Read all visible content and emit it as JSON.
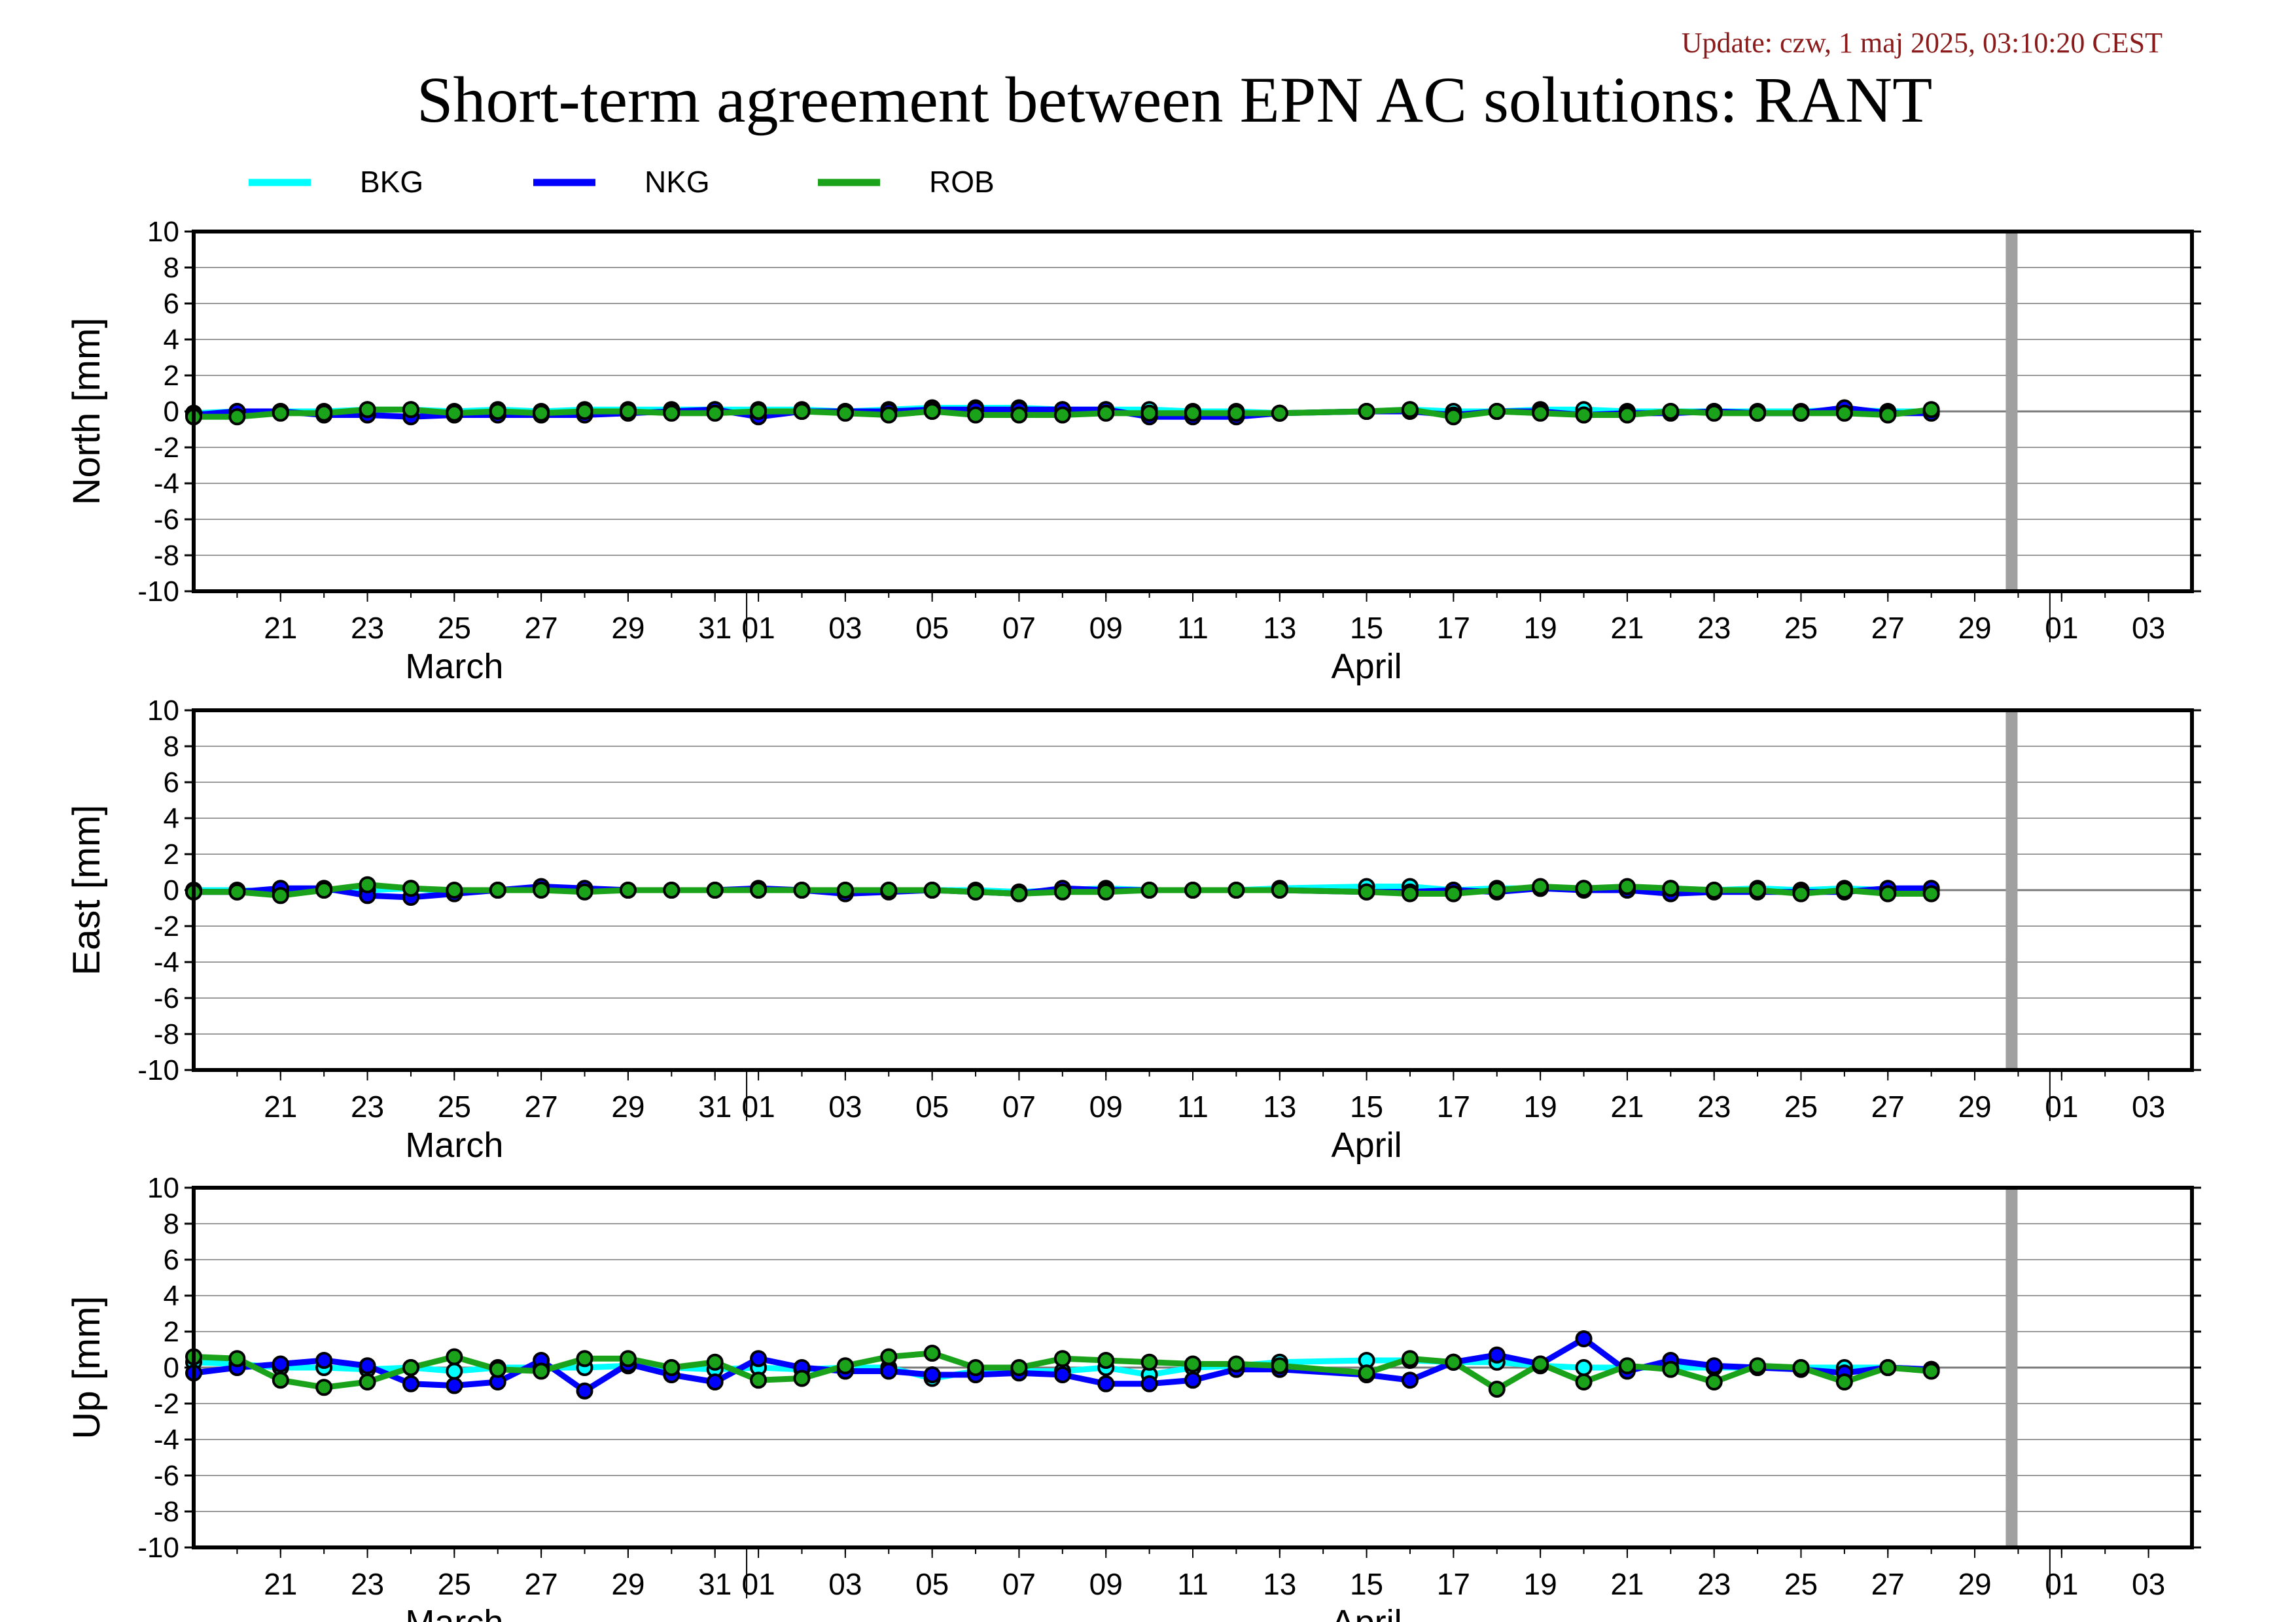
{
  "update_text": "Update: czw, 1 maj 2025, 03:10:20 CEST",
  "title": "Short-term agreement between EPN AC solutions: RANT",
  "colors": {
    "BKG": "#00ffff",
    "NKG": "#0000ff",
    "ROB": "#1aa31a",
    "update": "#8b1a1a",
    "today_bar": "#a0a0a0"
  },
  "chart_data": {
    "type": "line",
    "x_start": "2025-03-19",
    "x_end": "2025-05-04",
    "today_marker": "2025-04-30",
    "legend": [
      "BKG",
      "NKG",
      "ROB"
    ],
    "legend_placement": "top-left",
    "grid": true,
    "ylim": [
      -10,
      10
    ],
    "yticks": [
      10,
      8,
      6,
      4,
      2,
      0,
      -2,
      -4,
      -6,
      -8,
      -10
    ],
    "xtick_labels": [
      {
        "date": "2025-03-21",
        "label": "21"
      },
      {
        "date": "2025-03-23",
        "label": "23"
      },
      {
        "date": "2025-03-25",
        "label": "25"
      },
      {
        "date": "2025-03-27",
        "label": "27"
      },
      {
        "date": "2025-03-29",
        "label": "29"
      },
      {
        "date": "2025-03-31",
        "label": "31"
      },
      {
        "date": "2025-04-01",
        "label": "01"
      },
      {
        "date": "2025-04-03",
        "label": "03"
      },
      {
        "date": "2025-04-05",
        "label": "05"
      },
      {
        "date": "2025-04-07",
        "label": "07"
      },
      {
        "date": "2025-04-09",
        "label": "09"
      },
      {
        "date": "2025-04-11",
        "label": "11"
      },
      {
        "date": "2025-04-13",
        "label": "13"
      },
      {
        "date": "2025-04-15",
        "label": "15"
      },
      {
        "date": "2025-04-17",
        "label": "17"
      },
      {
        "date": "2025-04-19",
        "label": "19"
      },
      {
        "date": "2025-04-21",
        "label": "21"
      },
      {
        "date": "2025-04-23",
        "label": "23"
      },
      {
        "date": "2025-04-25",
        "label": "25"
      },
      {
        "date": "2025-04-27",
        "label": "27"
      },
      {
        "date": "2025-04-29",
        "label": "29"
      },
      {
        "date": "2025-05-01",
        "label": "01"
      },
      {
        "date": "2025-05-03",
        "label": "03"
      }
    ],
    "month_ticks": [
      "2025-04-01",
      "2025-05-01"
    ],
    "month_labels": [
      {
        "date": "2025-03-25",
        "label": "March"
      },
      {
        "date": "2025-04-15",
        "label": "April"
      }
    ],
    "x": [
      "2025-03-19",
      "2025-03-20",
      "2025-03-21",
      "2025-03-22",
      "2025-03-23",
      "2025-03-24",
      "2025-03-25",
      "2025-03-26",
      "2025-03-27",
      "2025-03-28",
      "2025-03-29",
      "2025-03-30",
      "2025-03-31",
      "2025-04-01",
      "2025-04-02",
      "2025-04-03",
      "2025-04-04",
      "2025-04-05",
      "2025-04-06",
      "2025-04-07",
      "2025-04-08",
      "2025-04-09",
      "2025-04-10",
      "2025-04-11",
      "2025-04-12",
      "2025-04-13",
      "2025-04-15",
      "2025-04-16",
      "2025-04-17",
      "2025-04-18",
      "2025-04-19",
      "2025-04-20",
      "2025-04-21",
      "2025-04-22",
      "2025-04-23",
      "2025-04-24",
      "2025-04-25",
      "2025-04-26",
      "2025-04-27",
      "2025-04-28"
    ],
    "panels": [
      {
        "ylabel": "North [mm]",
        "series": [
          {
            "name": "BKG",
            "values": [
              -0.1,
              0.0,
              0.0,
              0.0,
              0.1,
              0.1,
              0.0,
              0.1,
              0.0,
              0.1,
              0.1,
              0.1,
              0.1,
              0.1,
              0.1,
              0.0,
              0.1,
              0.2,
              0.2,
              0.2,
              0.1,
              0.1,
              0.1,
              0.0,
              0.0,
              -0.1,
              0.0,
              0.1,
              0.0,
              0.0,
              0.1,
              0.1,
              0.0,
              0.0,
              0.0,
              0.0,
              0.0,
              0.1,
              0.0,
              0.0
            ]
          },
          {
            "name": "NKG",
            "values": [
              -0.2,
              0.0,
              0.0,
              -0.2,
              -0.2,
              -0.3,
              -0.2,
              -0.2,
              -0.2,
              -0.2,
              -0.1,
              0.0,
              0.1,
              -0.3,
              0.0,
              0.0,
              0.0,
              0.1,
              0.1,
              0.1,
              0.1,
              0.1,
              -0.3,
              -0.3,
              -0.3,
              -0.1,
              0.0,
              0.0,
              -0.2,
              0.0,
              0.0,
              -0.2,
              -0.1,
              -0.1,
              0.0,
              -0.1,
              -0.1,
              0.2,
              -0.1,
              -0.1
            ]
          },
          {
            "name": "ROB",
            "values": [
              -0.3,
              -0.3,
              -0.1,
              -0.1,
              0.1,
              0.1,
              -0.1,
              0.0,
              -0.1,
              0.0,
              0.0,
              -0.1,
              -0.1,
              0.0,
              0.0,
              -0.1,
              -0.2,
              0.0,
              -0.2,
              -0.2,
              -0.2,
              -0.1,
              -0.1,
              -0.1,
              -0.1,
              -0.1,
              0.0,
              0.1,
              -0.3,
              0.0,
              -0.1,
              -0.2,
              -0.2,
              0.0,
              -0.1,
              -0.1,
              -0.1,
              -0.1,
              -0.2,
              0.1
            ]
          }
        ]
      },
      {
        "ylabel": "East [mm]",
        "series": [
          {
            "name": "BKG",
            "values": [
              0.0,
              0.0,
              -0.1,
              0.0,
              0.0,
              0.1,
              -0.1,
              0.0,
              0.1,
              0.0,
              0.0,
              0.0,
              0.0,
              0.0,
              0.0,
              0.0,
              0.0,
              0.0,
              0.0,
              -0.1,
              0.0,
              0.1,
              0.0,
              0.0,
              0.0,
              0.1,
              0.2,
              0.2,
              0.0,
              0.1,
              0.1,
              0.1,
              0.1,
              0.1,
              0.0,
              0.1,
              0.0,
              0.1,
              0.0,
              0.0
            ]
          },
          {
            "name": "NKG",
            "values": [
              -0.1,
              -0.1,
              0.1,
              0.1,
              -0.3,
              -0.4,
              -0.2,
              0.0,
              0.2,
              0.1,
              0.0,
              0.0,
              0.0,
              0.1,
              0.0,
              -0.2,
              -0.1,
              0.0,
              -0.1,
              -0.2,
              0.1,
              0.0,
              0.0,
              0.0,
              0.0,
              0.0,
              -0.1,
              -0.1,
              0.0,
              -0.1,
              0.1,
              0.0,
              0.0,
              -0.2,
              -0.1,
              -0.1,
              -0.1,
              -0.1,
              0.1,
              0.1
            ]
          },
          {
            "name": "ROB",
            "values": [
              -0.1,
              -0.1,
              -0.3,
              0.0,
              0.3,
              0.1,
              0.0,
              0.0,
              0.0,
              -0.1,
              0.0,
              0.0,
              0.0,
              0.0,
              0.0,
              0.0,
              0.0,
              0.0,
              -0.1,
              -0.2,
              -0.1,
              -0.1,
              0.0,
              0.0,
              0.0,
              0.0,
              -0.1,
              -0.2,
              -0.2,
              0.0,
              0.2,
              0.1,
              0.2,
              0.1,
              0.0,
              0.0,
              -0.2,
              0.0,
              -0.2,
              -0.2
            ]
          }
        ]
      },
      {
        "ylabel": "Up [mm]",
        "series": [
          {
            "name": "BKG",
            "values": [
              0.3,
              0.2,
              0.0,
              0.0,
              -0.1,
              0.0,
              -0.2,
              0.0,
              0.0,
              0.0,
              0.1,
              0.0,
              -0.1,
              0.0,
              -0.1,
              0.0,
              0.0,
              -0.6,
              -0.2,
              -0.2,
              -0.2,
              0.0,
              -0.4,
              0.0,
              0.1,
              0.3,
              0.4,
              0.4,
              0.3,
              0.3,
              0.1,
              0.0,
              0.0,
              0.0,
              0.0,
              0.0,
              0.0,
              0.0,
              0.0,
              -0.1
            ]
          },
          {
            "name": "NKG",
            "values": [
              -0.3,
              0.0,
              0.2,
              0.4,
              0.1,
              -0.9,
              -1.0,
              -0.8,
              0.4,
              -1.3,
              0.2,
              -0.4,
              -0.8,
              0.5,
              0.0,
              -0.2,
              -0.2,
              -0.4,
              -0.4,
              -0.3,
              -0.4,
              -0.9,
              -0.9,
              -0.7,
              -0.1,
              -0.1,
              -0.4,
              -0.7,
              0.3,
              0.7,
              0.2,
              1.6,
              -0.2,
              0.4,
              0.1,
              0.0,
              -0.1,
              -0.3,
              0.0,
              -0.1
            ]
          },
          {
            "name": "ROB",
            "values": [
              0.6,
              0.5,
              -0.7,
              -1.1,
              -0.8,
              0.0,
              0.6,
              -0.1,
              -0.2,
              0.5,
              0.5,
              0.0,
              0.3,
              -0.7,
              -0.6,
              0.1,
              0.6,
              0.8,
              0.0,
              0.0,
              0.5,
              0.4,
              0.3,
              0.2,
              0.2,
              0.1,
              -0.3,
              0.5,
              0.3,
              -1.2,
              0.2,
              -0.8,
              0.1,
              -0.1,
              -0.8,
              0.1,
              0.0,
              -0.8,
              0.0,
              -0.2
            ]
          }
        ]
      }
    ]
  }
}
